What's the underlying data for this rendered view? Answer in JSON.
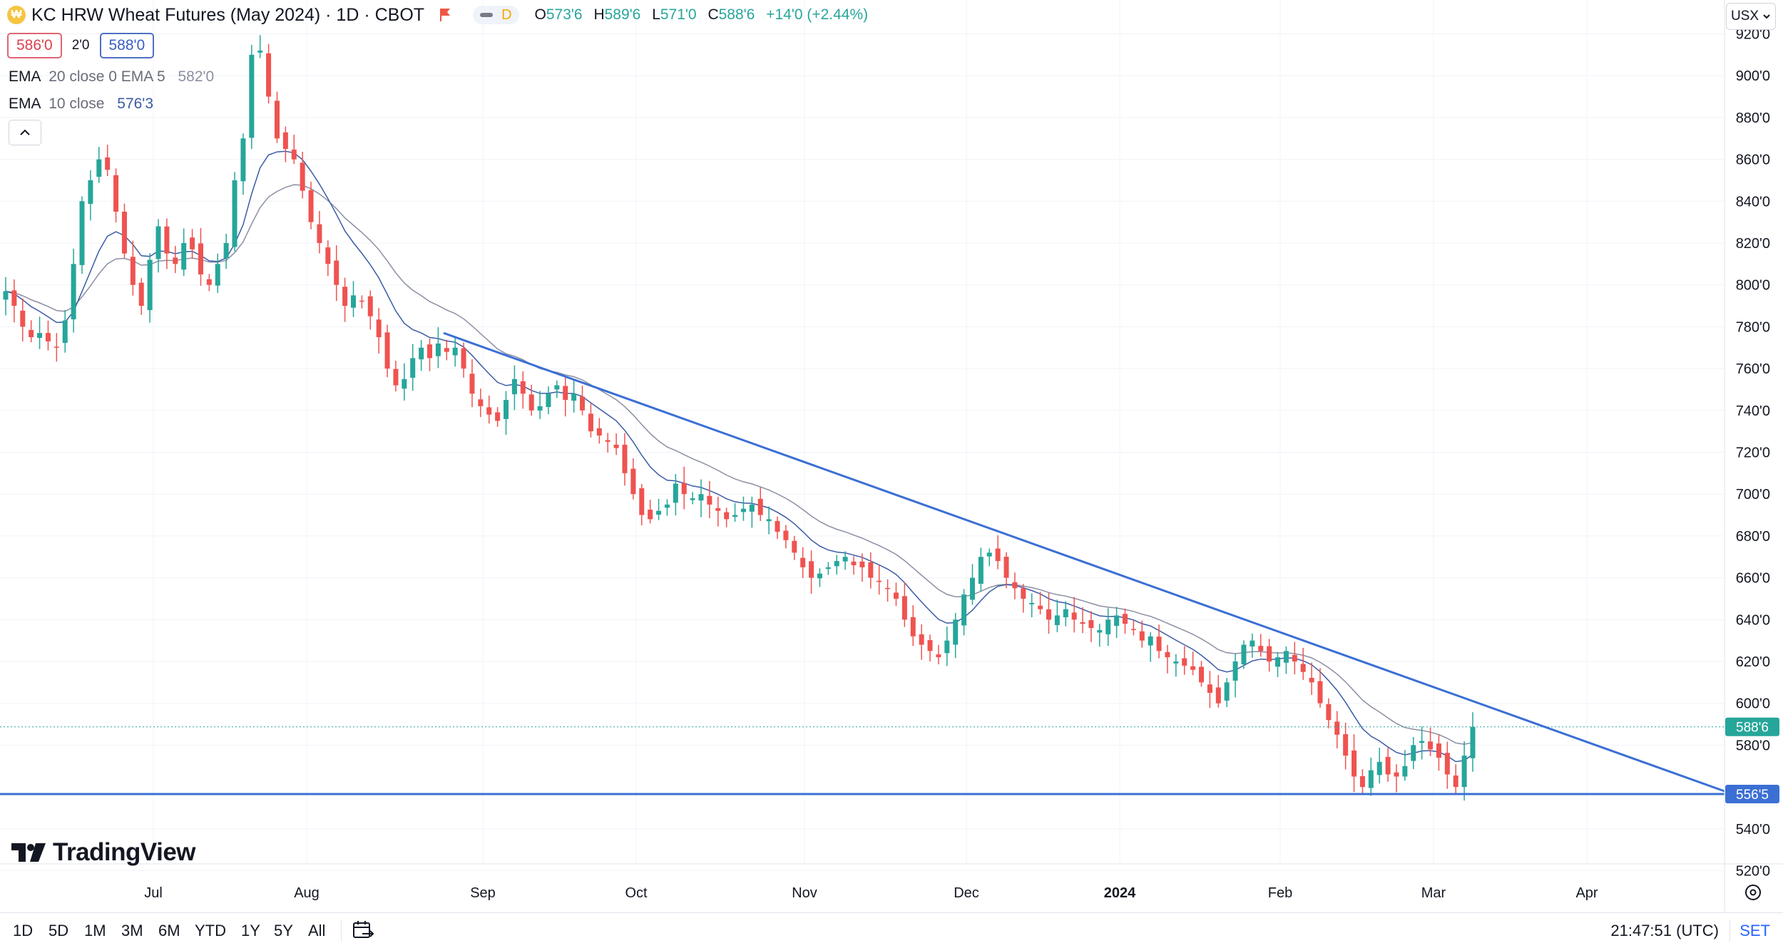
{
  "header": {
    "symbol_icon": "wheat-symbol-icon",
    "title": "KC HRW Wheat Futures (May 2024) · 1D · CBOT",
    "interval_badge": "D",
    "ohlc": [
      {
        "key": "O",
        "value": "573'6"
      },
      {
        "key": "H",
        "value": "589'6"
      },
      {
        "key": "L",
        "value": "571'0"
      },
      {
        "key": "C",
        "value": "588'6"
      }
    ],
    "change": "+14'0 (+2.44%)",
    "bid": "586'0",
    "spread": "2'0",
    "ask": "588'0",
    "unit_button": "USX"
  },
  "indicators": [
    {
      "name": "EMA",
      "params": "20 close 0 EMA 5",
      "value": "582'0",
      "color": "#8b8fa3"
    },
    {
      "name": "EMA",
      "params": "10 close",
      "value": "576'3",
      "color": "#3b5ba5"
    }
  ],
  "chart_data": {
    "type": "candlestick",
    "y_axis_unit": "cents per bushel (quoted in ' eighths)",
    "ylim": [
      512,
      928
    ],
    "y_ticks": [
      "920'0",
      "900'0",
      "880'0",
      "860'0",
      "840'0",
      "820'0",
      "800'0",
      "780'0",
      "760'0",
      "740'0",
      "720'0",
      "700'0",
      "680'0",
      "660'0",
      "640'0",
      "620'0",
      "600'0",
      "580'0",
      "540'0",
      "520'0"
    ],
    "x_ticks": [
      "Jul",
      "Aug",
      "Sep",
      "Oct",
      "Nov",
      "Dec",
      "2024",
      "Feb",
      "Mar",
      "Apr"
    ],
    "date_range": [
      "2023-06-12",
      "2024-03-08"
    ],
    "up_color": "#26a69a",
    "down_color": "#ef5350",
    "candles_close_approx": [
      797,
      790,
      780,
      775,
      777,
      773,
      770,
      783,
      810,
      840,
      850,
      860,
      855,
      835,
      815,
      800,
      790,
      812,
      828,
      815,
      810,
      820,
      817,
      805,
      800,
      810,
      820,
      850,
      870,
      910,
      912,
      890,
      870,
      865,
      860,
      845,
      830,
      820,
      810,
      800,
      790,
      795,
      792,
      785,
      775,
      760,
      752,
      755,
      765,
      770,
      765,
      772,
      768,
      770,
      760,
      748,
      742,
      738,
      735,
      745,
      755,
      748,
      740,
      742,
      748,
      752,
      745,
      748,
      740,
      730,
      728,
      725,
      722,
      710,
      700,
      690,
      688,
      692,
      695,
      705,
      700,
      698,
      700,
      695,
      692,
      688,
      690,
      693,
      695,
      690,
      688,
      682,
      678,
      672,
      665,
      660,
      662,
      665,
      668,
      670,
      666,
      665,
      660,
      658,
      655,
      650,
      640,
      632,
      628,
      625,
      622,
      630,
      640,
      652,
      660,
      670,
      672,
      668,
      660,
      655,
      650,
      648,
      645,
      640,
      642,
      645,
      640,
      638,
      636,
      635,
      640,
      642,
      638,
      635,
      630,
      632,
      625,
      622,
      620,
      618,
      616,
      610,
      605,
      600,
      610,
      620,
      628,
      630,
      625,
      620,
      622,
      625,
      620,
      615,
      610,
      600,
      592,
      585,
      575,
      565,
      560,
      568,
      572,
      566,
      565,
      570,
      580,
      582,
      578,
      574,
      566,
      560,
      575,
      588.75
    ],
    "ema_10_end": 576.375,
    "ema_20_end": 582.0,
    "last_price_label": "588'6",
    "last_price": 588.75,
    "support_line": {
      "value": 556.625,
      "label": "556'5"
    },
    "trendline": {
      "start": {
        "date": "2023-08-25",
        "price": 777
      },
      "end": {
        "date": "2024-04-17",
        "price": 558
      }
    }
  },
  "watermark": {
    "text": "TradingView",
    "logo_icon": "tradingview-logo-icon"
  },
  "toolbar": {
    "ranges": [
      "1D",
      "5D",
      "1M",
      "3M",
      "6M",
      "YTD",
      "1Y",
      "5Y",
      "All"
    ],
    "calendar_icon": "calendar-goto-icon",
    "time": "21:47:51 (UTC)",
    "session": "SET",
    "settings_icon": "chart-settings-icon"
  }
}
